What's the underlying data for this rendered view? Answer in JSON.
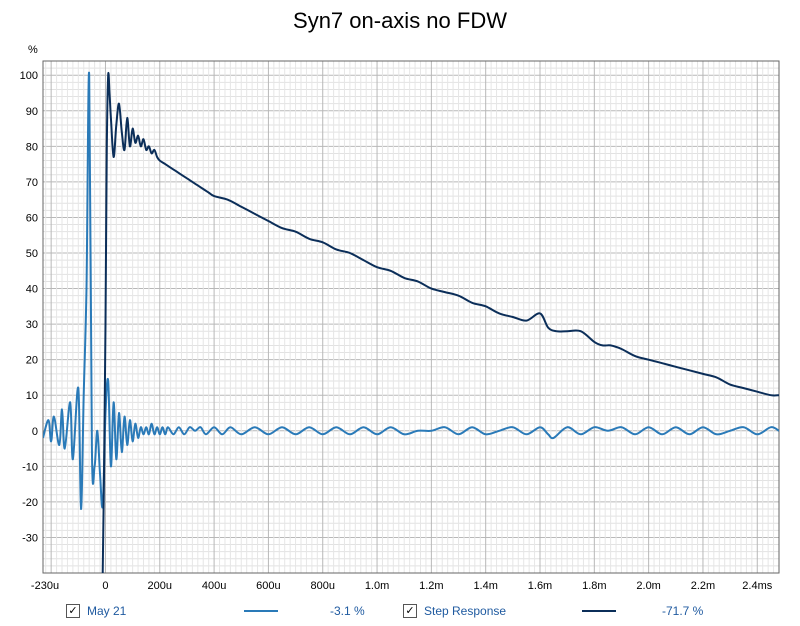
{
  "chart_data": {
    "type": "line",
    "title": "Syn7 on-axis no FDW",
    "ylabel": "%",
    "xlabel": "",
    "xlim": [
      -0.00023,
      0.00248
    ],
    "ylim": [
      -40,
      104
    ],
    "grid": true,
    "x_ticks": [
      {
        "v": -0.00023,
        "label": "-230u"
      },
      {
        "v": 0,
        "label": "0"
      },
      {
        "v": 0.0002,
        "label": "200u"
      },
      {
        "v": 0.0004,
        "label": "400u"
      },
      {
        "v": 0.0006,
        "label": "600u"
      },
      {
        "v": 0.0008,
        "label": "800u"
      },
      {
        "v": 0.001,
        "label": "1.0m"
      },
      {
        "v": 0.0012,
        "label": "1.2m"
      },
      {
        "v": 0.0014,
        "label": "1.4m"
      },
      {
        "v": 0.0016,
        "label": "1.6m"
      },
      {
        "v": 0.0018,
        "label": "1.8m"
      },
      {
        "v": 0.002,
        "label": "2.0m"
      },
      {
        "v": 0.0022,
        "label": "2.2m"
      },
      {
        "v": 0.0024,
        "label": "2.4ms"
      }
    ],
    "y_ticks": [
      {
        "v": 100,
        "label": "100"
      },
      {
        "v": 90,
        "label": "90"
      },
      {
        "v": 80,
        "label": "80"
      },
      {
        "v": 70,
        "label": "70"
      },
      {
        "v": 60,
        "label": "60"
      },
      {
        "v": 50,
        "label": "50"
      },
      {
        "v": 40,
        "label": "40"
      },
      {
        "v": 30,
        "label": "30"
      },
      {
        "v": 20,
        "label": "20"
      },
      {
        "v": 10,
        "label": "10"
      },
      {
        "v": 0,
        "label": "0"
      },
      {
        "v": -10,
        "label": "-10"
      },
      {
        "v": -20,
        "label": "-20"
      },
      {
        "v": -30,
        "label": "-30"
      }
    ],
    "series": [
      {
        "name": "May 21",
        "color": "#2a7ab8",
        "x": [
          -0.00023,
          -0.00021,
          -0.0002,
          -0.00019,
          -0.00017,
          -0.00016,
          -0.00015,
          -0.00013,
          -0.00012,
          -0.0001,
          -9e-05,
          -8e-05,
          -7e-05,
          -6e-05,
          -5e-05,
          -4e-05,
          -3e-05,
          -2e-05,
          -1e-05,
          0,
          1e-05,
          2e-05,
          3e-05,
          4e-05,
          5e-05,
          6e-05,
          7e-05,
          8e-05,
          9e-05,
          0.0001,
          0.00011,
          0.00012,
          0.00013,
          0.00014,
          0.00015,
          0.00016,
          0.00017,
          0.00018,
          0.00019,
          0.0002,
          0.00021,
          0.00022,
          0.00023,
          0.00025,
          0.00027,
          0.00029,
          0.00031,
          0.00033,
          0.00035,
          0.00037,
          0.0004,
          0.00043,
          0.00046,
          0.0005,
          0.00055,
          0.0006,
          0.00065,
          0.0007,
          0.00075,
          0.0008,
          0.00085,
          0.0009,
          0.00095,
          0.001,
          0.00105,
          0.0011,
          0.00115,
          0.0012,
          0.00125,
          0.0013,
          0.00135,
          0.0014,
          0.00145,
          0.0015,
          0.00155,
          0.0016,
          0.00163,
          0.00165,
          0.0017,
          0.00175,
          0.0018,
          0.00185,
          0.0019,
          0.00195,
          0.002,
          0.00205,
          0.0021,
          0.00215,
          0.0022,
          0.00225,
          0.0023,
          0.00235,
          0.0024,
          0.00245,
          0.00248
        ],
        "y": [
          -2,
          3,
          -3,
          4,
          -4,
          6,
          -5,
          8,
          -8,
          12,
          -22,
          10,
          40,
          100,
          -5,
          -10,
          0,
          -12,
          -21,
          5,
          14,
          -10,
          8,
          -8,
          5,
          -6,
          4,
          -4,
          3,
          -3,
          2,
          -2,
          1,
          -1,
          1,
          -1,
          2,
          -1,
          1,
          -1,
          1,
          -1,
          1,
          -1,
          1,
          -1,
          1,
          0,
          1,
          -1,
          1,
          -1,
          1,
          -1,
          1,
          -1,
          1,
          -1,
          1,
          -1,
          1,
          -1,
          1,
          -1,
          1,
          -1,
          0,
          0,
          1,
          -1,
          1,
          -1,
          0,
          1,
          -1,
          1,
          -1,
          -2,
          1,
          -1,
          1,
          0,
          1,
          -1,
          1,
          -1,
          1,
          -1,
          1,
          -1,
          0,
          1,
          -1,
          1,
          0
        ]
      },
      {
        "name": "Step Response",
        "color": "#0b2e59",
        "x": [
          -1e-05,
          -5e-06,
          0,
          5e-06,
          1e-05,
          1.5e-05,
          2e-05,
          3e-05,
          4e-05,
          5e-05,
          6e-05,
          7e-05,
          8e-05,
          9e-05,
          0.0001,
          0.00011,
          0.00012,
          0.00013,
          0.00014,
          0.00015,
          0.00016,
          0.00017,
          0.00018,
          0.00019,
          0.0002,
          0.00022,
          0.00024,
          0.00026,
          0.00028,
          0.0003,
          0.00032,
          0.00034,
          0.00036,
          0.00038,
          0.0004,
          0.00045,
          0.0005,
          0.00055,
          0.0006,
          0.00065,
          0.0007,
          0.00075,
          0.0008,
          0.00085,
          0.0009,
          0.00095,
          0.001,
          0.00105,
          0.0011,
          0.00115,
          0.0012,
          0.00125,
          0.0013,
          0.00135,
          0.0014,
          0.00145,
          0.0015,
          0.00155,
          0.0016,
          0.00163,
          0.00166,
          0.0017,
          0.00175,
          0.0018,
          0.00183,
          0.00186,
          0.0019,
          0.00195,
          0.002,
          0.00205,
          0.0021,
          0.00215,
          0.0022,
          0.00225,
          0.0023,
          0.00235,
          0.0024,
          0.00245,
          0.00248
        ],
        "y": [
          -40,
          -10,
          30,
          80,
          100,
          95,
          88,
          77,
          86,
          92,
          84,
          79,
          88,
          80,
          85,
          81,
          83,
          80,
          82,
          79,
          80,
          78,
          79,
          77,
          76,
          75,
          74,
          73,
          72,
          71,
          70,
          69,
          68,
          67,
          66,
          65,
          63,
          61,
          59,
          57,
          56,
          54,
          53,
          51,
          50,
          48,
          46,
          45,
          43,
          42,
          40,
          39,
          38,
          36,
          35,
          33,
          32,
          31,
          33,
          29,
          28,
          28,
          28,
          25,
          24,
          24,
          23,
          21,
          20,
          19,
          18,
          17,
          16,
          15,
          13,
          12,
          11,
          10,
          10
        ]
      }
    ]
  },
  "legend": [
    {
      "name": "May 21",
      "value": "-3.1 %",
      "checked": "✓",
      "color": "#2a7ab8"
    },
    {
      "name": "Step Response",
      "value": "-71.7 %",
      "checked": "✓",
      "color": "#0b2e59"
    }
  ]
}
